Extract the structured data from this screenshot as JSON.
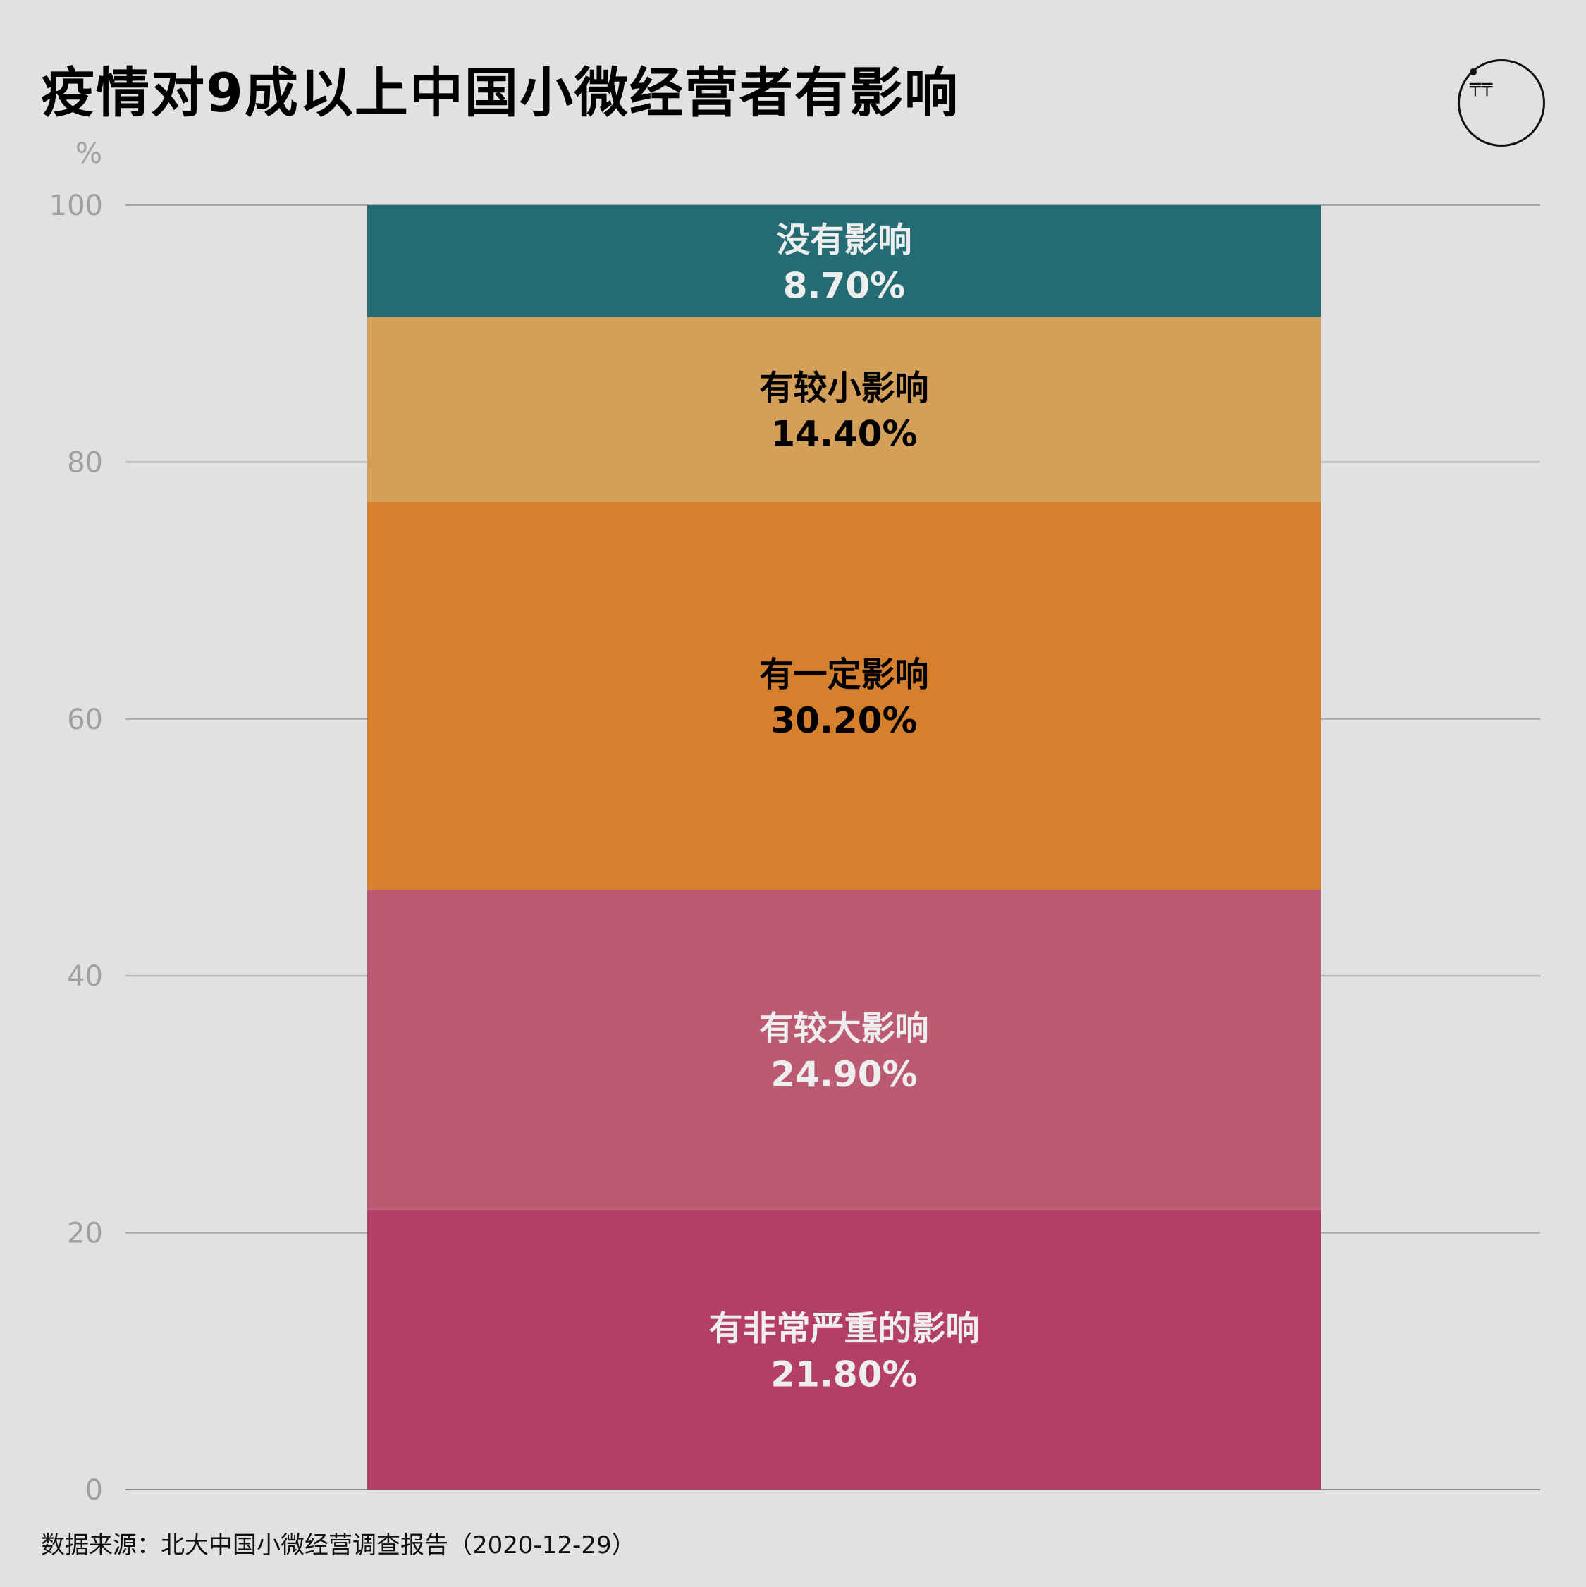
{
  "header": {
    "title": "疫情对9成以上中国小微经营者有影响",
    "logo_glyph": "╤╤"
  },
  "footer": {
    "source": "数据来源：北大中国小微经营调查报告（2020-12-29）"
  },
  "chart_data": {
    "type": "bar",
    "stacked": true,
    "ylabel": "%",
    "ylim": [
      0,
      100
    ],
    "yticks": [
      0,
      20,
      40,
      60,
      80,
      100
    ],
    "grid": true,
    "series": [
      {
        "name": "有非常严重的影响",
        "value": 21.8,
        "label": "21.80%",
        "color": "#b33f68",
        "text_color": "#eeeeee"
      },
      {
        "name": "有较大影响",
        "value": 24.9,
        "label": "24.90%",
        "color": "#bd5a73",
        "text_color": "#eeeeee"
      },
      {
        "name": "有一定影响",
        "value": 30.2,
        "label": "30.20%",
        "color": "#d6802d",
        "text_color": "#000000"
      },
      {
        "name": "有较小影响",
        "value": 14.4,
        "label": "14.40%",
        "color": "#d49f59",
        "text_color": "#000000"
      },
      {
        "name": "没有影响",
        "value": 8.7,
        "label": "8.70%",
        "color": "#256b74",
        "text_color": "#eeeeee"
      }
    ]
  }
}
